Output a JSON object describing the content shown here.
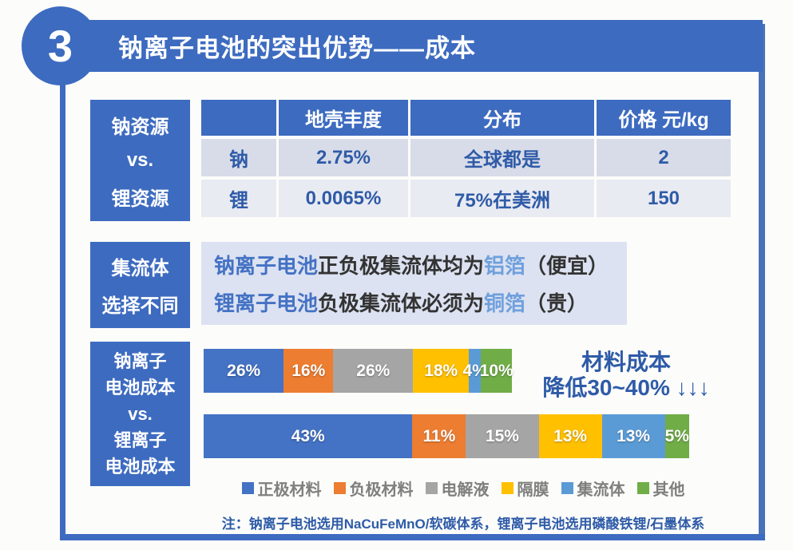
{
  "badge_number": "3",
  "title": "钠离子电池的突出优势——成本",
  "colors": {
    "primary_blue": "#3D6BC0",
    "table_text_blue": "#2F5BA8",
    "table_row1_bg": "#D8DCE8",
    "table_row2_bg": "#E9EBF2",
    "collector_bg": "#DCE2F1",
    "battery_name_blue": "#4472C4",
    "foil_highlight_blue": "#6FA0DC",
    "annotation_blue": "#2E5BA8",
    "legend_text_gray": "#7F7F7F"
  },
  "resource": {
    "label_lines": [
      "钠资源",
      "vs.",
      "锂资源"
    ],
    "table": {
      "headers": [
        "",
        "地壳丰度",
        "分布",
        "价格 元/kg"
      ],
      "rows": [
        [
          "钠",
          "2.75%",
          "全球都是",
          "2"
        ],
        [
          "锂",
          "0.0065%",
          "75%在美洲",
          "150"
        ]
      ]
    }
  },
  "collector": {
    "label_lines": [
      "集流体",
      "选择不同"
    ],
    "lines": [
      {
        "battery": "钠离子电池",
        "text": "正负极集流体均为",
        "foil": "铝箔",
        "note": "（便宜）"
      },
      {
        "battery": "锂离子电池",
        "text": "负极集流体必须为",
        "foil": "铜箔",
        "note": "（贵）"
      }
    ]
  },
  "cost": {
    "label_lines": [
      "钠离子",
      "电池成本",
      "vs.",
      "锂离子",
      "电池成本"
    ],
    "annotation_line1": "材料成本",
    "annotation_line2": "降低30~40% ↓↓↓",
    "note": "注：钠离子电池选用NaCuFeMnO/软碳体系，锂离子电池选用磷酸铁锂/石墨体系"
  },
  "chart_data": {
    "type": "bar",
    "subtype": "horizontal-stacked",
    "unit": "%",
    "categories": [
      "钠离子电池成本",
      "锂离子电池成本"
    ],
    "series": [
      {
        "name": "正极材料",
        "color": "#4472C4",
        "values": [
          26,
          43
        ]
      },
      {
        "name": "负极材料",
        "color": "#ED7D31",
        "values": [
          16,
          11
        ]
      },
      {
        "name": "电解液",
        "color": "#A5A5A5",
        "values": [
          26,
          15
        ]
      },
      {
        "name": "隔膜",
        "color": "#FFC000",
        "values": [
          18,
          13
        ]
      },
      {
        "name": "集流体",
        "color": "#5B9BD5",
        "values": [
          4,
          13
        ]
      },
      {
        "name": "其他",
        "color": "#70AD47",
        "values": [
          10,
          5
        ]
      }
    ],
    "bar_relative_lengths": [
      0.635,
      1.0
    ],
    "legend_position": "bottom",
    "annotation": "材料成本降低30~40%"
  }
}
